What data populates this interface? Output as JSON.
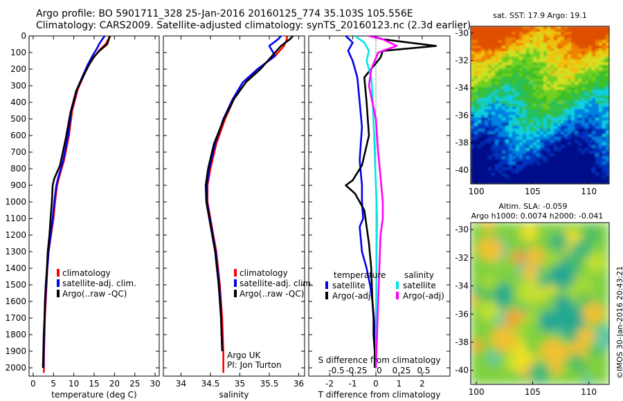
{
  "header": {
    "line1": "Argo profile: BO 5901711_328 25-Jan-2016 20160125_774 35.103S 105.556E",
    "line2": "Climatology: CARS2009. Satellite-adjusted climatology: synTS_20160123.nc (2.3d earlier)"
  },
  "credit": "©IMOS 30-Jan-2016 20:43:21",
  "colors": {
    "climatology": "#ff0000",
    "satellite": "#0000ee",
    "argo": "#000000",
    "sal_satellite": "#00e5e5",
    "sal_argo": "#ff00ff"
  },
  "chart_data": [
    {
      "type": "line",
      "id": "temperature",
      "xlabel": "temperature (deg C)",
      "ylabel": "",
      "xlim": [
        -1,
        31
      ],
      "ylim": [
        2050,
        0
      ],
      "xticks": [
        0,
        5,
        10,
        15,
        20,
        25,
        30
      ],
      "yticks": [
        0,
        100,
        200,
        300,
        400,
        500,
        600,
        700,
        800,
        900,
        1000,
        1100,
        1200,
        1300,
        1400,
        1500,
        1600,
        1700,
        1800,
        1900,
        2000
      ],
      "legend": [
        "climatology",
        "satellite-adj. clim.",
        "Argo(..raw -QC)"
      ],
      "series": [
        {
          "name": "climatology",
          "color": "#ff0000",
          "x": [
            19.0,
            18.5,
            17.8,
            16.5,
            15.2,
            13.8,
            12.6,
            11.0,
            9.6,
            8.8,
            7.6,
            6.4,
            5.9,
            5.4,
            5.0,
            4.4,
            3.8,
            3.5,
            3.3,
            3.1,
            2.9,
            2.8,
            2.7,
            2.65,
            2.6
          ],
          "y": [
            0,
            20,
            50,
            80,
            120,
            170,
            230,
            320,
            450,
            600,
            750,
            850,
            900,
            1000,
            1100,
            1200,
            1300,
            1400,
            1500,
            1600,
            1700,
            1800,
            1900,
            2000,
            2030
          ]
        },
        {
          "name": "satellite-adj. clim.",
          "color": "#0000ee",
          "x": [
            17.6,
            17.0,
            16.2,
            15.6,
            14.6,
            13.5,
            12.4,
            10.8,
            9.4,
            8.6,
            7.4,
            6.2,
            5.7,
            5.2,
            4.8,
            4.3,
            3.8,
            3.5,
            3.2,
            3.0,
            2.8,
            2.7,
            2.6,
            2.55
          ],
          "y": [
            0,
            20,
            50,
            80,
            120,
            170,
            230,
            320,
            450,
            600,
            750,
            850,
            900,
            1000,
            1100,
            1200,
            1300,
            1400,
            1500,
            1600,
            1700,
            1800,
            1900,
            2000
          ]
        },
        {
          "name": "Argo(..raw -QC)",
          "color": "#000000",
          "x": [
            18.8,
            18.6,
            18.2,
            16.3,
            14.8,
            13.6,
            12.4,
            10.6,
            9.2,
            8.0,
            6.6,
            5.2,
            4.8,
            4.6,
            4.3,
            4.0,
            3.6,
            3.4,
            3.1,
            2.9,
            2.8,
            2.6,
            2.5,
            2.4
          ],
          "y": [
            0,
            20,
            50,
            90,
            130,
            180,
            240,
            330,
            460,
            620,
            780,
            860,
            900,
            1000,
            1100,
            1200,
            1300,
            1400,
            1500,
            1600,
            1700,
            1800,
            1900,
            2000
          ]
        }
      ]
    },
    {
      "type": "line",
      "id": "salinity",
      "xlabel": "salinity",
      "ylabel": "",
      "xlim": [
        33.7,
        36.1
      ],
      "ylim": [
        2050,
        0
      ],
      "xticks": [
        34,
        34.5,
        35,
        35.5,
        36
      ],
      "legend": [
        "climatology",
        "satellite-adj. clim.",
        "Argo(..raw -QC)"
      ],
      "series": [
        {
          "name": "climatology",
          "color": "#ff0000",
          "x": [
            35.8,
            35.8,
            35.75,
            35.6,
            35.3,
            35.1,
            34.9,
            34.75,
            34.6,
            34.5,
            34.45,
            34.45,
            34.5,
            34.55,
            34.6,
            34.63,
            34.66,
            34.68,
            34.7,
            34.71,
            34.72,
            34.72
          ],
          "y": [
            0,
            20,
            60,
            120,
            200,
            280,
            380,
            500,
            650,
            800,
            900,
            1000,
            1100,
            1200,
            1300,
            1400,
            1500,
            1600,
            1700,
            1800,
            1900,
            2030
          ]
        },
        {
          "name": "satellite-adj. clim.",
          "color": "#0000ee",
          "x": [
            35.7,
            35.65,
            35.5,
            35.6,
            35.3,
            35.05,
            34.88,
            34.72,
            34.58,
            34.48,
            34.44,
            34.44,
            34.49,
            34.54,
            34.59,
            34.62,
            34.65,
            34.67,
            34.68,
            34.69,
            34.7
          ],
          "y": [
            0,
            20,
            60,
            120,
            200,
            280,
            380,
            500,
            650,
            800,
            900,
            1000,
            1100,
            1200,
            1300,
            1400,
            1500,
            1600,
            1700,
            1800,
            1900
          ]
        },
        {
          "name": "Argo(..raw -QC)",
          "color": "#000000",
          "x": [
            35.9,
            35.85,
            35.7,
            35.55,
            35.35,
            35.1,
            34.9,
            34.73,
            34.56,
            34.46,
            34.42,
            34.43,
            34.48,
            34.53,
            34.58,
            34.61,
            34.64,
            34.66,
            34.68,
            34.69,
            34.7
          ],
          "y": [
            0,
            20,
            60,
            120,
            200,
            280,
            380,
            500,
            650,
            800,
            900,
            1000,
            1100,
            1200,
            1300,
            1400,
            1500,
            1600,
            1700,
            1800,
            1900
          ]
        }
      ],
      "annotations": [
        "Argo UK",
        "PI: Jon Turton"
      ]
    },
    {
      "type": "line",
      "id": "difference",
      "xlabel": "T difference from climatology",
      "top_label": "S difference from climatology",
      "xlim": [
        -2.9,
        3.2
      ],
      "ylim": [
        2050,
        0
      ],
      "xticks": [
        -2,
        -1,
        0,
        1,
        2
      ],
      "sticks": [
        "-0.5",
        "-0.25",
        "0",
        "0.25",
        "0.5"
      ],
      "legend_headers": [
        "temperature",
        "salinity"
      ],
      "legend": [
        "satellite",
        "Argo(-adj)",
        "satellite",
        "Argo(-adj)"
      ],
      "series": [
        {
          "name": "satellite",
          "color": "#0000ee",
          "x": [
            -1.3,
            -1.0,
            -1.2,
            -1.0,
            -0.8,
            -0.7,
            -0.6,
            -0.65,
            -0.7,
            -0.6,
            -0.6,
            -0.55,
            -0.7,
            -0.6,
            -0.4,
            -0.25,
            -0.15,
            -0.08,
            -0.05,
            -0.05,
            -0.05
          ],
          "y": [
            0,
            40,
            90,
            150,
            250,
            400,
            550,
            650,
            750,
            900,
            1000,
            1100,
            1150,
            1300,
            1400,
            1500,
            1600,
            1700,
            1800,
            1900,
            2000
          ]
        },
        {
          "name": "Argo(-adj)",
          "color": "#000000",
          "x": [
            -0.2,
            0.3,
            2.6,
            0.3,
            0.2,
            -0.5,
            -0.4,
            -0.3,
            -0.6,
            -1.0,
            -1.3,
            -0.9,
            -0.5,
            -0.3,
            -0.2,
            -0.15,
            -0.1,
            -0.1,
            -0.05,
            -0.05
          ],
          "y": [
            0,
            20,
            60,
            90,
            130,
            250,
            400,
            600,
            780,
            870,
            900,
            950,
            1050,
            1250,
            1400,
            1600,
            1700,
            1800,
            1900,
            2000
          ]
        },
        {
          "name": "satellite",
          "color": "#00e5e5",
          "x": [
            -0.9,
            -0.5,
            -0.3,
            -0.4,
            -0.2,
            -0.15,
            -0.1,
            -0.05,
            0,
            0.05,
            0.03,
            0.02,
            0.01,
            0.01,
            0.0
          ],
          "y": [
            0,
            40,
            90,
            150,
            250,
            350,
            500,
            700,
            900,
            1100,
            1300,
            1500,
            1700,
            1900,
            2000
          ]
        },
        {
          "name": "Argo(-adj)",
          "color": "#ff00ff",
          "x": [
            -0.3,
            0.3,
            0.9,
            0.1,
            -0.2,
            -0.3,
            0.0,
            0.1,
            0.2,
            0.3,
            0.3,
            0.2,
            0.15,
            0.1,
            0.05,
            0.0
          ],
          "y": [
            0,
            20,
            60,
            100,
            200,
            300,
            500,
            700,
            850,
            1000,
            1100,
            1200,
            1400,
            1600,
            1800,
            2000
          ]
        }
      ]
    },
    {
      "type": "heatmap",
      "id": "sst-map",
      "title": "sat. SST: 17.9 Argo: 19.1",
      "xticks": [
        100,
        105,
        110
      ],
      "yticks": [
        -30,
        -32,
        -34,
        -36,
        -38,
        -40
      ],
      "xlim": [
        99.5,
        111.8
      ],
      "ylim": [
        -41,
        -29.5
      ]
    },
    {
      "type": "heatmap",
      "id": "sla-map",
      "title1": "Altim. SLA: -0.059",
      "title2": "Argo h1000: 0.0074 h2000: -0.041",
      "xticks": [
        100,
        105,
        110
      ],
      "yticks": [
        -30,
        -32,
        -34,
        -36,
        -38,
        -40
      ],
      "xlim": [
        99.5,
        111.8
      ],
      "ylim": [
        -41,
        -29.5
      ]
    }
  ]
}
